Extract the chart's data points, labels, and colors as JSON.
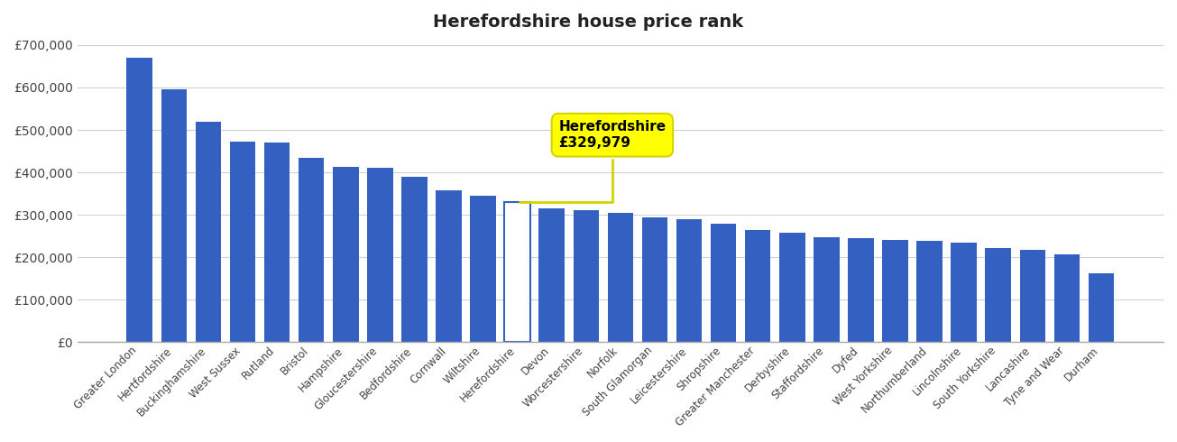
{
  "categories": [
    "Greater London",
    "Hertfordshire",
    "Buckinghamshire",
    "West Sussex",
    "Rutland",
    "Bristol",
    "Hampshire",
    "Gloucestershire",
    "Bedfordshire",
    "Cornwall",
    "Wiltshire",
    "Herefordshire",
    "Devon",
    "Worcestershire",
    "Norfolk",
    "South Glamorgan",
    "Leicestershire",
    "Shropshire",
    "Greater Manchester",
    "Derbyshire",
    "Staffordshire",
    "Dyfed",
    "West Yorkshire",
    "Northumberland",
    "Lincolnshire",
    "South Yorkshire",
    "Lancashire",
    "Tyne and Wear",
    "Durham"
  ],
  "values": [
    670000,
    595000,
    520000,
    472000,
    470000,
    435000,
    413000,
    410000,
    390000,
    358000,
    345000,
    329979,
    315000,
    312000,
    305000,
    295000,
    290000,
    280000,
    265000,
    258000,
    248000,
    245000,
    240000,
    238000,
    235000,
    222000,
    218000,
    208000,
    162000
  ],
  "bar_color": "#3461c1",
  "highlight_bar_color": "#ffffff",
  "highlight_bar_edgecolor": "#3461c1",
  "herefordshire_index": 11,
  "annotation_label": "Herefordshire\n£329,979",
  "annotation_bg": "#ffff00",
  "annotation_edge": "#d4d400",
  "ylim": [
    0,
    700000
  ],
  "yticks": [
    0,
    100000,
    200000,
    300000,
    400000,
    500000,
    600000,
    700000
  ],
  "ytick_labels": [
    "£0",
    "£100,000",
    "£200,000",
    "£300,000",
    "£400,000",
    "£500,000",
    "£600,000",
    "£700,000"
  ],
  "background_color": "#ffffff",
  "grid_color": "#d0d0d0",
  "title": "Herefordshire house price rank",
  "title_fontsize": 14
}
